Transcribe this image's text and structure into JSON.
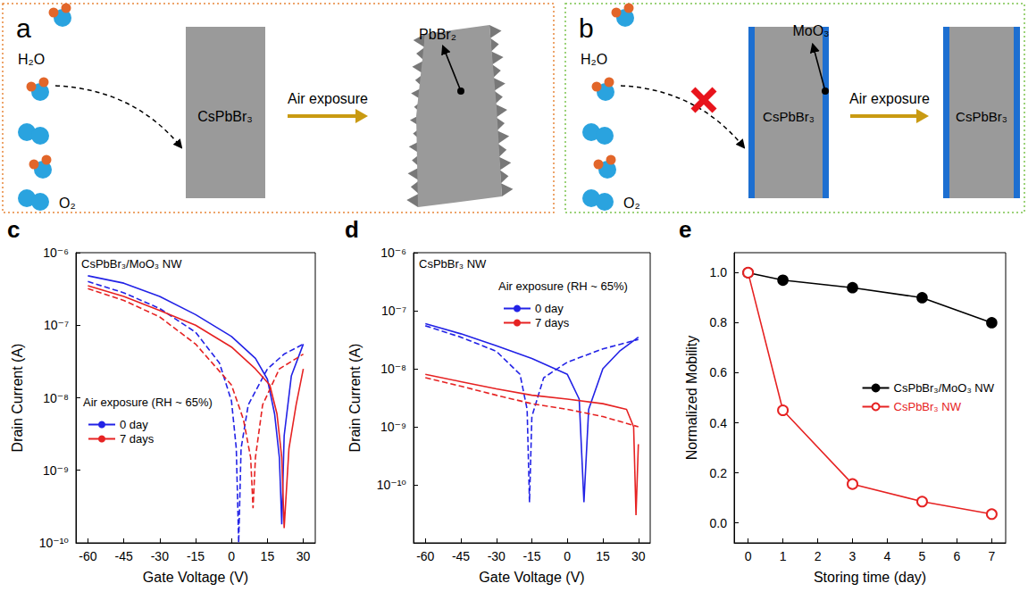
{
  "diagrams": [
    {
      "panel_label": "a",
      "molecules": [
        "H₂O",
        "O₂"
      ],
      "crystal": "CsPbBr₃",
      "arrow": "Air exposure",
      "product": "PbBr₂"
    },
    {
      "panel_label": "b",
      "molecules": [
        "H₂O",
        "O₂"
      ],
      "crystal": "CsPbBr₃",
      "coating": "MoO₃",
      "arrow": "Air exposure",
      "result": "CsPbBr₃"
    }
  ],
  "chart_data": [
    {
      "type": "line",
      "panel_label": "c",
      "annotations": [
        "CsPbBr₃/MoO₃ NW"
      ],
      "legend_title": "Air exposure (RH ~ 65%)",
      "x_label": "Gate Voltage (V)",
      "y_label": "Drain Current (A)",
      "log": "y",
      "grid": false,
      "legend": "lower left",
      "xlim": [
        -65,
        35
      ],
      "xticks": [
        -60,
        -45,
        -30,
        -15,
        0,
        15,
        30
      ],
      "ylim": [
        1e-10,
        1e-06
      ],
      "yticks": [
        {
          "value": 1e-10,
          "label": "10⁻¹⁰"
        },
        {
          "value": 1e-09,
          "label": "10⁻⁹"
        },
        {
          "value": 1e-08,
          "label": "10⁻⁸"
        },
        {
          "value": 1e-07,
          "label": "10⁻⁷"
        },
        {
          "value": 1e-06,
          "label": "10⁻⁶"
        }
      ],
      "series": [
        {
          "name": "0 day",
          "color": "#2222e6",
          "line_style": "solid",
          "x": [
            -60,
            -45,
            -30,
            -15,
            0,
            10,
            15,
            18,
            20,
            21,
            22,
            25,
            30
          ],
          "values": [
            4.8e-07,
            3.8e-07,
            2.5e-07,
            1.4e-07,
            7e-08,
            3.5e-08,
            1.8e-08,
            6e-09,
            1.5e-09,
            1.8e-10,
            3e-09,
            2e-08,
            5.5e-08
          ]
        },
        {
          "name": "0 day",
          "color": "#2222e6",
          "line_style": "dashed",
          "x": [
            -60,
            -45,
            -30,
            -15,
            -5,
            0,
            2,
            3,
            4,
            7,
            15,
            22,
            30
          ],
          "values": [
            4e-07,
            2.8e-07,
            1.7e-07,
            8e-08,
            3e-08,
            9e-09,
            2e-09,
            1e-10,
            2e-09,
            8e-09,
            2.5e-08,
            4e-08,
            5.5e-08
          ]
        },
        {
          "name": "7 days",
          "color": "#e62222",
          "line_style": "solid",
          "x": [
            -60,
            -45,
            -30,
            -15,
            0,
            10,
            16,
            19,
            21,
            22,
            24,
            27,
            30
          ],
          "values": [
            3.5e-07,
            2.5e-07,
            1.6e-07,
            1e-07,
            5e-08,
            2.5e-08,
            1.5e-08,
            6e-09,
            1.5e-09,
            1.6e-10,
            2e-09,
            8e-09,
            2.5e-08
          ]
        },
        {
          "name": "7 days",
          "color": "#e62222",
          "line_style": "dashed",
          "x": [
            -60,
            -45,
            -30,
            -15,
            0,
            5,
            8,
            9,
            10,
            13,
            20,
            30
          ],
          "values": [
            3.2e-07,
            2.2e-07,
            1.3e-07,
            5.5e-08,
            1.5e-08,
            5e-09,
            1.5e-09,
            3e-10,
            1.5e-09,
            8e-09,
            2.5e-08,
            4e-08
          ]
        }
      ]
    },
    {
      "type": "line",
      "panel_label": "d",
      "annotations": [
        "CsPbBr₃ NW"
      ],
      "legend_title": "Air exposure (RH ~ 65%)",
      "x_label": "Gate Voltage (V)",
      "y_label": "Drain Current (A)",
      "log": "y",
      "grid": false,
      "legend": "top",
      "xlim": [
        -65,
        35
      ],
      "xticks": [
        -60,
        -45,
        -30,
        -15,
        0,
        15,
        30
      ],
      "ylim": [
        1e-11,
        1e-06
      ],
      "yticks": [
        {
          "value": 1e-10,
          "label": "10⁻¹⁰"
        },
        {
          "value": 1e-09,
          "label": "10⁻⁹"
        },
        {
          "value": 1e-08,
          "label": "10⁻⁸"
        },
        {
          "value": 1e-07,
          "label": "10⁻⁷"
        },
        {
          "value": 1e-06,
          "label": "10⁻⁶"
        }
      ],
      "series": [
        {
          "name": "0 day",
          "color": "#2222e6",
          "line_style": "solid",
          "x": [
            -60,
            -45,
            -30,
            -15,
            0,
            5,
            7,
            9,
            15,
            22,
            30
          ],
          "values": [
            6e-08,
            4e-08,
            2.5e-08,
            1.5e-08,
            8e-09,
            3e-09,
            5e-11,
            2e-09,
            1e-08,
            2e-08,
            3.5e-08
          ]
        },
        {
          "name": "0 day",
          "color": "#2222e6",
          "line_style": "dashed",
          "x": [
            -60,
            -45,
            -30,
            -20,
            -17,
            -16,
            -15,
            -10,
            0,
            15,
            30
          ],
          "values": [
            5.5e-08,
            3.5e-08,
            2e-08,
            8e-09,
            2e-09,
            5e-11,
            1.5e-09,
            7e-09,
            1.3e-08,
            2.2e-08,
            3.2e-08
          ]
        },
        {
          "name": "7 days",
          "color": "#e62222",
          "line_style": "solid",
          "x": [
            -60,
            -45,
            -30,
            -15,
            0,
            15,
            25,
            28,
            29,
            30
          ],
          "values": [
            8e-09,
            6e-09,
            4.5e-09,
            3.5e-09,
            3e-09,
            2.5e-09,
            2e-09,
            1e-09,
            3e-11,
            5e-10
          ]
        },
        {
          "name": "7 days",
          "color": "#e62222",
          "line_style": "dashed",
          "x": [
            -60,
            -45,
            -30,
            -15,
            0,
            15,
            30
          ],
          "values": [
            7e-09,
            5e-09,
            3.5e-09,
            2.5e-09,
            2e-09,
            1.5e-09,
            1e-09
          ]
        }
      ]
    },
    {
      "type": "line",
      "panel_label": "e",
      "x_label": "Storing time (day)",
      "y_label": "Normalized Mobility",
      "grid": false,
      "legend": "right",
      "xlim": [
        -0.4,
        7.4
      ],
      "xticks": [
        0,
        1,
        2,
        3,
        4,
        5,
        6,
        7
      ],
      "ylim": [
        -0.08,
        1.08
      ],
      "yticks": [
        {
          "value": 0,
          "label": "0.0"
        },
        0.2,
        0.4,
        0.6,
        0.8,
        {
          "value": 1,
          "label": "1.0"
        }
      ],
      "series": [
        {
          "name": "CsPbBr₃/MoO₃ NW",
          "color": "#000000",
          "marker": "circle",
          "line_style": "solid",
          "x": [
            0,
            1,
            3,
            5,
            7
          ],
          "values": [
            1.0,
            0.97,
            0.94,
            0.9,
            0.8
          ]
        },
        {
          "name": "CsPbBr₃ NW",
          "color": "#e62222",
          "marker": "open_circle",
          "line_style": "solid",
          "x": [
            0,
            1,
            3,
            5,
            7
          ],
          "values": [
            1.0,
            0.45,
            0.155,
            0.085,
            0.035
          ]
        }
      ]
    }
  ]
}
